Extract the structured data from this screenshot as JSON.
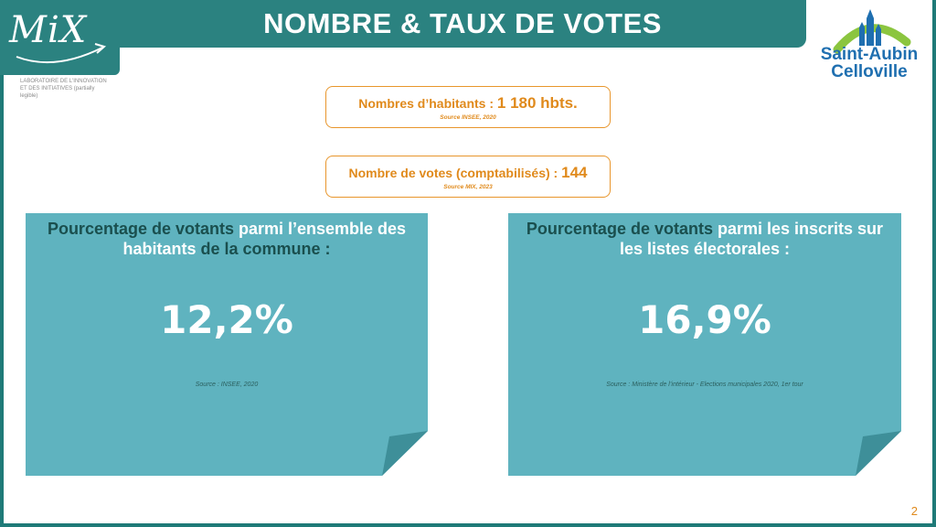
{
  "header": {
    "title": "NOMBRE & TAUX DE VOTES",
    "logo_text": "MiX",
    "logo_subtitle": "LABORATOIRE DE L'INNOVATION ET DES INITIATIVES (partially legible)"
  },
  "town_logo": {
    "line1": "Saint-Aubin",
    "line2": "Celloville"
  },
  "info_boxes": [
    {
      "label": "Nombres d’habitants : ",
      "value": "1 180 hbts.",
      "source": "Source INSEE, 2020"
    },
    {
      "label": "Nombre de votes (comptabilisés) : ",
      "value": "144",
      "source": "Source MIX, 2023"
    }
  ],
  "cards": [
    {
      "heading_hl1": "Pourcentage de votants",
      "heading_mid": " parmi l’ensemble des habitants ",
      "heading_hl2": "de la commune :",
      "value": "12,2%",
      "source": "Source : INSEE, 2020"
    },
    {
      "heading_hl1": "Pourcentage de votants",
      "heading_mid": " parmi les inscrits sur les listes électorales :",
      "heading_hl2": "",
      "value": "16,9%",
      "source": "Source : Ministère de l’intérieur - Elections municipales 2020, 1er tour"
    }
  ],
  "page_number": "2",
  "colors": {
    "teal": "#2b8280",
    "card": "#5fb3bf",
    "orange": "#e08a1c"
  }
}
